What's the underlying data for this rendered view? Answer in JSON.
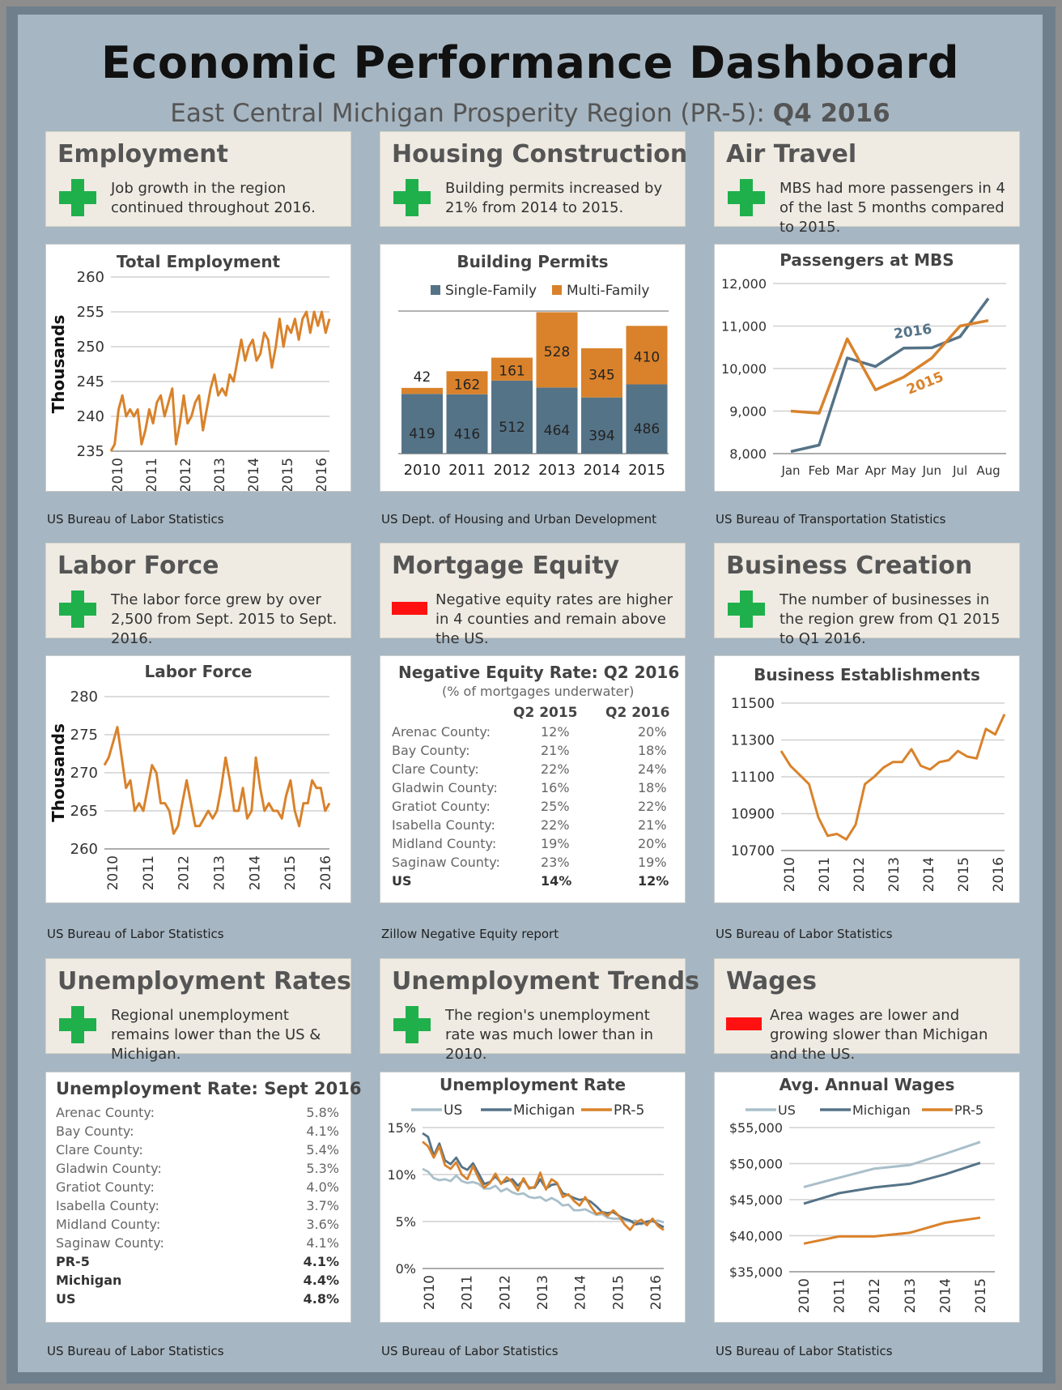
{
  "header": {
    "title": "Economic Performance Dashboard",
    "subtitle_prefix": "East Central Michigan Prosperity Region (PR-5):",
    "subtitle_period": "Q4 2016"
  },
  "colors": {
    "orange": "#d9822b",
    "slate": "#557387",
    "lightblue": "#a9bfca",
    "green": "#1fb04c",
    "red": "#ff1111"
  },
  "panels": [
    {
      "title": "Employment",
      "indicator": "plus-icon",
      "text": "Job growth in the region continued throughout 2016.",
      "source": "US Bureau of Labor Statistics"
    },
    {
      "title": "Housing Construction",
      "indicator": "plus-icon",
      "text": "Building permits increased by 21% from 2014 to 2015.",
      "source": "US Dept. of Housing and Urban Development"
    },
    {
      "title": "Air Travel",
      "indicator": "plus-icon",
      "text": "MBS had more passengers in 4 of the last 5 months compared to 2015.",
      "source": "US Bureau of Transportation Statistics"
    },
    {
      "title": "Labor Force",
      "indicator": "plus-icon",
      "text": "The labor force grew by over 2,500 from Sept. 2015 to Sept. 2016.",
      "source": "US Bureau of Labor Statistics"
    },
    {
      "title": "Mortgage Equity",
      "indicator": "minus-icon",
      "text": "Negative equity rates are higher in 4 counties and remain above the US.",
      "source": "Zillow Negative Equity report"
    },
    {
      "title": "Business Creation",
      "indicator": "plus-icon",
      "text": "The number of businesses in the region grew from Q1 2015 to Q1 2016.",
      "source": "US Bureau of Labor Statistics"
    },
    {
      "title": "Unemployment Rates",
      "indicator": "plus-icon",
      "text": "Regional unemployment remains lower than the US & Michigan.",
      "source": "US Bureau of Labor Statistics"
    },
    {
      "title": "Unemployment Trends",
      "indicator": "plus-icon",
      "text": "The region's unemployment rate was much lower than in 2010.",
      "source": "US Bureau of Labor Statistics"
    },
    {
      "title": "Wages",
      "indicator": "minus-icon",
      "text": "Area wages are lower and growing slower than Michigan and the US.",
      "source": "US Bureau of Labor Statistics"
    }
  ],
  "chart_data": [
    {
      "id": "employment",
      "type": "line",
      "title": "Total Employment",
      "ylabel": "Thousands",
      "ylim": [
        235,
        260
      ],
      "yticks": [
        235,
        240,
        245,
        250,
        255,
        260
      ],
      "xticks": [
        "2010",
        "2011",
        "2012",
        "2013",
        "2014",
        "2015",
        "2016"
      ],
      "series": [
        {
          "values": [
            235,
            236,
            241,
            243,
            240,
            241,
            240,
            241,
            236,
            238,
            241,
            239,
            242,
            243,
            240,
            242,
            244,
            236,
            239,
            243,
            239,
            240,
            242,
            243,
            238,
            241,
            244,
            246,
            243,
            244,
            243,
            246,
            245,
            248,
            251,
            248,
            250,
            251,
            248,
            249,
            252,
            251,
            247,
            250,
            254,
            250,
            253,
            252,
            254,
            251,
            254,
            255,
            252,
            255,
            253,
            255,
            252,
            254
          ]
        }
      ]
    },
    {
      "id": "permits",
      "type": "bar",
      "title": "Building Permits",
      "categories": [
        "2010",
        "2011",
        "2012",
        "2013",
        "2014",
        "2015"
      ],
      "ylim": [
        0,
        1000
      ],
      "series": [
        {
          "name": "Single-Family",
          "values": [
            419,
            416,
            512,
            464,
            394,
            486
          ]
        },
        {
          "name": "Multi-Family",
          "values": [
            42,
            162,
            161,
            528,
            345,
            410
          ]
        }
      ]
    },
    {
      "id": "mbs",
      "type": "line",
      "title": "Passengers at MBS",
      "ylim": [
        8000,
        12000
      ],
      "yticks": [
        "8,000",
        "9,000",
        "10,000",
        "11,000",
        "12,000"
      ],
      "categories": [
        "Jan",
        "Feb",
        "Mar",
        "Apr",
        "May",
        "Jun",
        "Jul",
        "Aug"
      ],
      "series": [
        {
          "name": "2016",
          "values": [
            8050,
            8200,
            10250,
            10050,
            10480,
            10490,
            10750,
            11650
          ]
        },
        {
          "name": "2015",
          "values": [
            9000,
            8950,
            10700,
            9500,
            9800,
            10250,
            11000,
            11130
          ]
        }
      ]
    },
    {
      "id": "labor",
      "type": "line",
      "title": "Labor Force",
      "ylabel": "Thousands",
      "ylim": [
        260,
        280
      ],
      "yticks": [
        260,
        265,
        270,
        275,
        280
      ],
      "xticks": [
        "2010",
        "2011",
        "2012",
        "2013",
        "2014",
        "2015",
        "2016"
      ],
      "series": [
        {
          "values": [
            271,
            272,
            274,
            276,
            272,
            268,
            269,
            265,
            266,
            265,
            268,
            271,
            270,
            266,
            266,
            265,
            262,
            263,
            266,
            269,
            266,
            263,
            263,
            264,
            265,
            264,
            265,
            268,
            272,
            269,
            265,
            265,
            268,
            264,
            265,
            272,
            268,
            265,
            266,
            265,
            265,
            264,
            267,
            269,
            265,
            263,
            266,
            266,
            269,
            268,
            268,
            265,
            266
          ]
        }
      ]
    },
    {
      "id": "equity",
      "type": "table",
      "title": "Negative Equity Rate: Q2 2016",
      "subtitle": "(% of mortgages underwater)",
      "columns": [
        "",
        "Q2 2015",
        "Q2 2016"
      ],
      "rows": [
        [
          "Arenac County:",
          "12%",
          "20%"
        ],
        [
          "Bay County:",
          "21%",
          "18%"
        ],
        [
          "Clare County:",
          "22%",
          "24%"
        ],
        [
          "Gladwin County:",
          "16%",
          "18%"
        ],
        [
          "Gratiot County:",
          "25%",
          "22%"
        ],
        [
          "Isabella County:",
          "22%",
          "21%"
        ],
        [
          "Midland County:",
          "19%",
          "20%"
        ],
        [
          "Saginaw County:",
          "23%",
          "19%"
        ],
        [
          "US",
          "14%",
          "12%"
        ]
      ]
    },
    {
      "id": "business",
      "type": "line",
      "title": "Business Establishments",
      "ylim": [
        10700,
        11500
      ],
      "yticks": [
        "10700",
        "10900",
        "11100",
        "11300",
        "11500"
      ],
      "xticks": [
        "2010",
        "2011",
        "2012",
        "2013",
        "2014",
        "2015",
        "2016"
      ],
      "series": [
        {
          "values": [
            11240,
            11160,
            11110,
            11060,
            10880,
            10780,
            10790,
            10760,
            10840,
            11060,
            11100,
            11150,
            11180,
            11180,
            11250,
            11160,
            11140,
            11180,
            11190,
            11240,
            11210,
            11200,
            11360,
            11330,
            11440
          ]
        }
      ]
    },
    {
      "id": "unemp_table",
      "type": "table",
      "title": "Unemployment Rate: Sept 2016",
      "rows": [
        [
          "Arenac County:",
          "5.8%"
        ],
        [
          "Bay County:",
          "4.1%"
        ],
        [
          "Clare County:",
          "5.4%"
        ],
        [
          "Gladwin County:",
          "5.3%"
        ],
        [
          "Gratiot County:",
          "4.0%"
        ],
        [
          "Isabella County:",
          "3.7%"
        ],
        [
          "Midland County:",
          "3.6%"
        ],
        [
          "Saginaw County:",
          "4.1%"
        ],
        [
          "PR-5",
          "4.1%"
        ],
        [
          "Michigan",
          "4.4%"
        ],
        [
          "US",
          "4.8%"
        ]
      ]
    },
    {
      "id": "unemp_trend",
      "type": "line",
      "title": "Unemployment Rate",
      "ylim": [
        0,
        15
      ],
      "yticks": [
        "0%",
        "5%",
        "10%",
        "15%"
      ],
      "xticks": [
        "2010",
        "2011",
        "2012",
        "2013",
        "2014",
        "2015",
        "2016"
      ],
      "series": [
        {
          "name": "US",
          "values": [
            10.6,
            10.3,
            9.6,
            9.4,
            9.5,
            9.3,
            9.9,
            9.3,
            9.1,
            9.2,
            9.0,
            8.5,
            8.5,
            8.8,
            8.2,
            8.5,
            8.1,
            7.9,
            8.0,
            7.6,
            7.5,
            7.6,
            7.2,
            7.5,
            7.2,
            6.7,
            6.8,
            6.2,
            6.2,
            6.3,
            6.0,
            5.7,
            5.8,
            5.4,
            5.3,
            5.3,
            5.2,
            5.0,
            5.1,
            4.7,
            4.9,
            5.0,
            5.1,
            4.9
          ]
        },
        {
          "name": "Michigan",
          "values": [
            14.4,
            14.0,
            12.0,
            13.3,
            11.5,
            11.1,
            11.8,
            10.8,
            10.5,
            11.2,
            10.1,
            9.0,
            9.2,
            9.8,
            9.1,
            9.3,
            9.5,
            8.8,
            9.4,
            8.6,
            8.6,
            9.5,
            8.5,
            8.9,
            9.0,
            8.0,
            7.8,
            7.5,
            7.3,
            7.4,
            7.1,
            6.6,
            6.0,
            5.9,
            6.0,
            5.6,
            5.3,
            5.1,
            4.7,
            4.8,
            5.0,
            5.1,
            4.7,
            4.4
          ]
        },
        {
          "name": "PR-5",
          "values": [
            13.5,
            13.0,
            11.8,
            13.0,
            11.0,
            10.6,
            11.3,
            10.0,
            9.5,
            10.9,
            9.6,
            8.6,
            9.1,
            10.1,
            9.0,
            9.7,
            9.2,
            8.3,
            9.6,
            8.5,
            8.7,
            10.2,
            8.4,
            9.5,
            9.1,
            7.6,
            7.9,
            7.2,
            6.7,
            7.6,
            6.6,
            5.8,
            6.0,
            5.6,
            6.2,
            5.6,
            4.7,
            4.1,
            4.9,
            5.2,
            4.6,
            5.3,
            4.5,
            4.1
          ]
        }
      ]
    },
    {
      "id": "wages",
      "type": "line",
      "title": "Avg. Annual Wages",
      "ylim": [
        35000,
        55000
      ],
      "yticks": [
        "$35,000",
        "$40,000",
        "$45,000",
        "$50,000",
        "$55,000"
      ],
      "categories": [
        "2010",
        "2011",
        "2012",
        "2013",
        "2014",
        "2015"
      ],
      "series": [
        {
          "name": "US",
          "values": [
            46750,
            48050,
            49300,
            49800,
            51350,
            53000
          ]
        },
        {
          "name": "Michigan",
          "values": [
            44450,
            45900,
            46700,
            47200,
            48500,
            50100
          ]
        },
        {
          "name": "PR-5",
          "values": [
            38900,
            39900,
            39900,
            40400,
            41800,
            42500
          ]
        }
      ]
    }
  ],
  "table_labels": {
    "col_q2015": "Q2 2015",
    "col_q2016": "Q2 2016"
  }
}
